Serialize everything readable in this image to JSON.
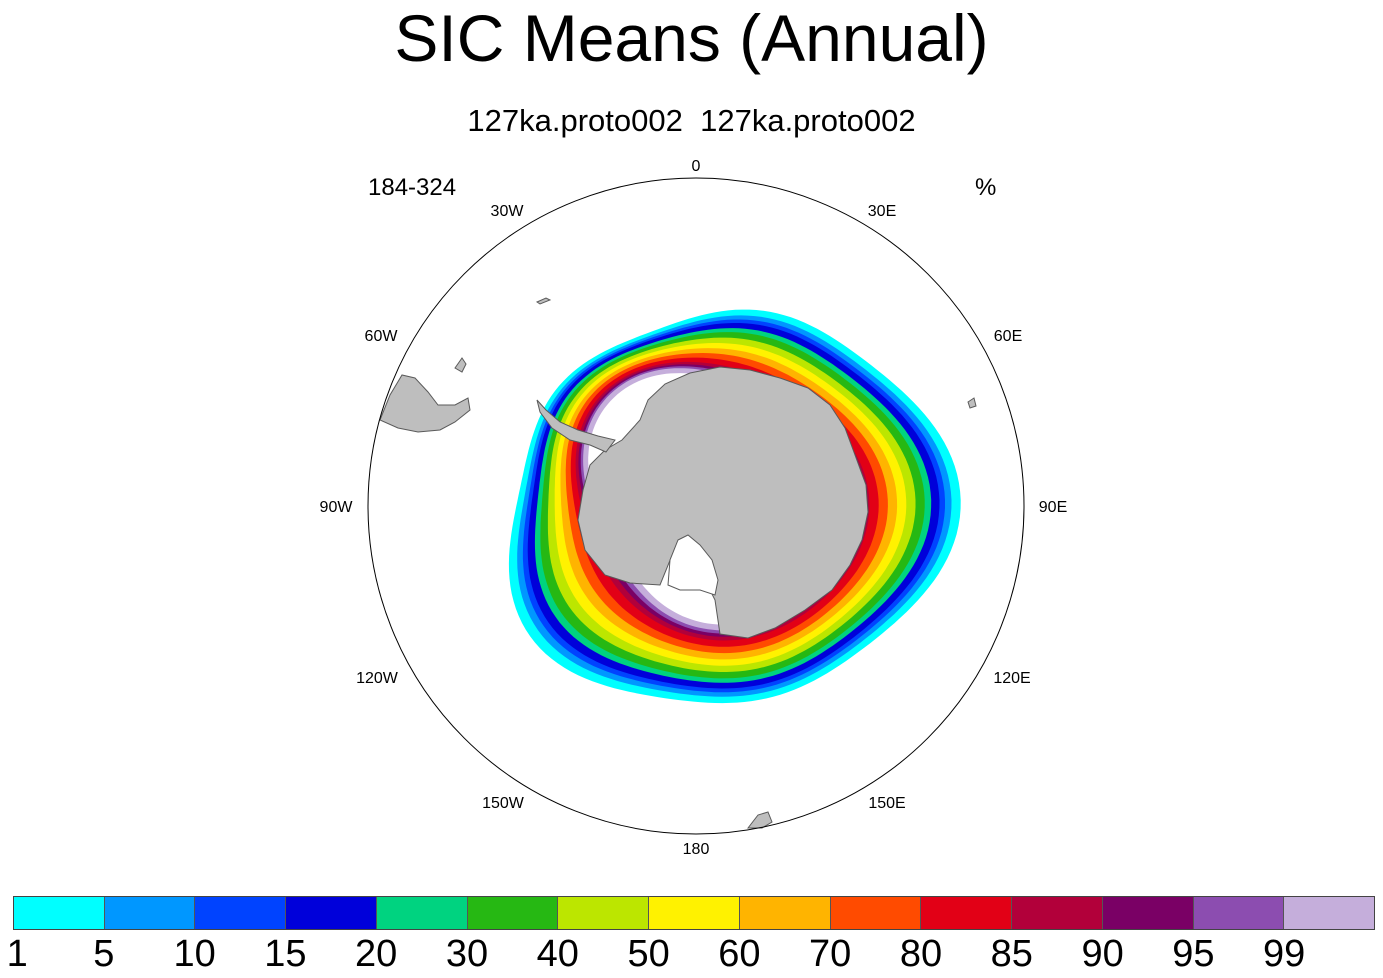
{
  "title": "SIC Means (Annual)",
  "subtitle": "127ka.proto002  127ka.proto002",
  "left_note": "184-324",
  "right_note": "%",
  "longitude_labels": [
    "0",
    "30E",
    "60E",
    "90E",
    "120E",
    "150E",
    "180",
    "150W",
    "120W",
    "90W",
    "60W",
    "30W"
  ],
  "colorbar": {
    "colors": [
      "#00FFFF",
      "#0097FF",
      "#0043FF",
      "#0000DA",
      "#00D380",
      "#26B813",
      "#BCE600",
      "#FFF200",
      "#FFB400",
      "#FF4B00",
      "#E20016",
      "#B2003A",
      "#7A0065",
      "#8C4DB0",
      "#C5AEDB"
    ],
    "labels": [
      "1",
      "5",
      "10",
      "15",
      "20",
      "30",
      "40",
      "50",
      "60",
      "70",
      "80",
      "85",
      "90",
      "95",
      "99"
    ]
  },
  "colors": {
    "land": "#BEBEBE",
    "coast": "#5a5a5a",
    "ocean": "#FFFFFF"
  }
}
